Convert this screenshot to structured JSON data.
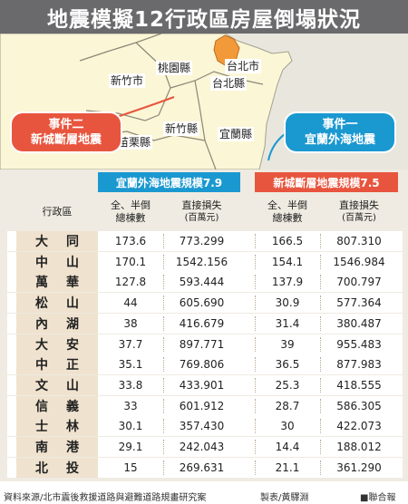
{
  "title": "地震模擬12行政區房屋倒塌狀況",
  "map": {
    "labels": [
      "桃園縣",
      "台北市",
      "新竹市",
      "台北縣",
      "新竹縣",
      "宜蘭縣",
      "苗栗縣"
    ],
    "event2": [
      "事件二",
      "新城斷層地震"
    ],
    "event1": [
      "事件一",
      "宜蘭外海地震"
    ]
  },
  "chart_data": {
    "type": "table",
    "title": "地震模擬12行政區房屋倒塌狀況",
    "groups": [
      {
        "name": "宜蘭外海地震規模7.9"
      },
      {
        "name": "新城斷層地震規模7.5"
      }
    ],
    "columns": [
      {
        "id": "district",
        "label": "行政區",
        "sub": ""
      },
      {
        "id": "yl_count",
        "label": "全、半倒",
        "sub": "總棟數"
      },
      {
        "id": "yl_loss",
        "label": "直接損失",
        "sub": "(百萬元)"
      },
      {
        "id": "xc_count",
        "label": "全、半倒",
        "sub": "總棟數"
      },
      {
        "id": "xc_loss",
        "label": "直接損失",
        "sub": "(百萬元)"
      }
    ],
    "rows": [
      [
        "大同",
        "173.6",
        "773.299",
        "166.5",
        "807.310"
      ],
      [
        "中山",
        "170.1",
        "1542.156",
        "154.1",
        "1546.984"
      ],
      [
        "萬華",
        "127.8",
        "593.444",
        "137.9",
        "700.797"
      ],
      [
        "松山",
        "44",
        "605.690",
        "30.9",
        "577.364"
      ],
      [
        "內湖",
        "38",
        "416.679",
        "31.4",
        "380.487"
      ],
      [
        "大安",
        "37.7",
        "897.771",
        "39",
        "955.483"
      ],
      [
        "中正",
        "35.1",
        "769.806",
        "36.5",
        "877.983"
      ],
      [
        "文山",
        "33.8",
        "433.901",
        "25.3",
        "418.555"
      ],
      [
        "信義",
        "33",
        "601.912",
        "28.7",
        "586.305"
      ],
      [
        "士林",
        "30.1",
        "357.430",
        "30",
        "422.073"
      ],
      [
        "南港",
        "29.1",
        "242.043",
        "14.4",
        "188.012"
      ],
      [
        "北投",
        "15",
        "269.631",
        "21.1",
        "361.290"
      ]
    ]
  },
  "footer": {
    "source": "資料來源/北市震後救援道路與避難道路規畫研究案",
    "credit": "製表/黃驛淵",
    "publisher": "■聯合報"
  },
  "colors": {
    "header_bg": "#6a6a6c",
    "yilan_blue": "#1a98d0",
    "xincheng_red": "#e8553e",
    "taipei_orange": "#f29a3a"
  }
}
